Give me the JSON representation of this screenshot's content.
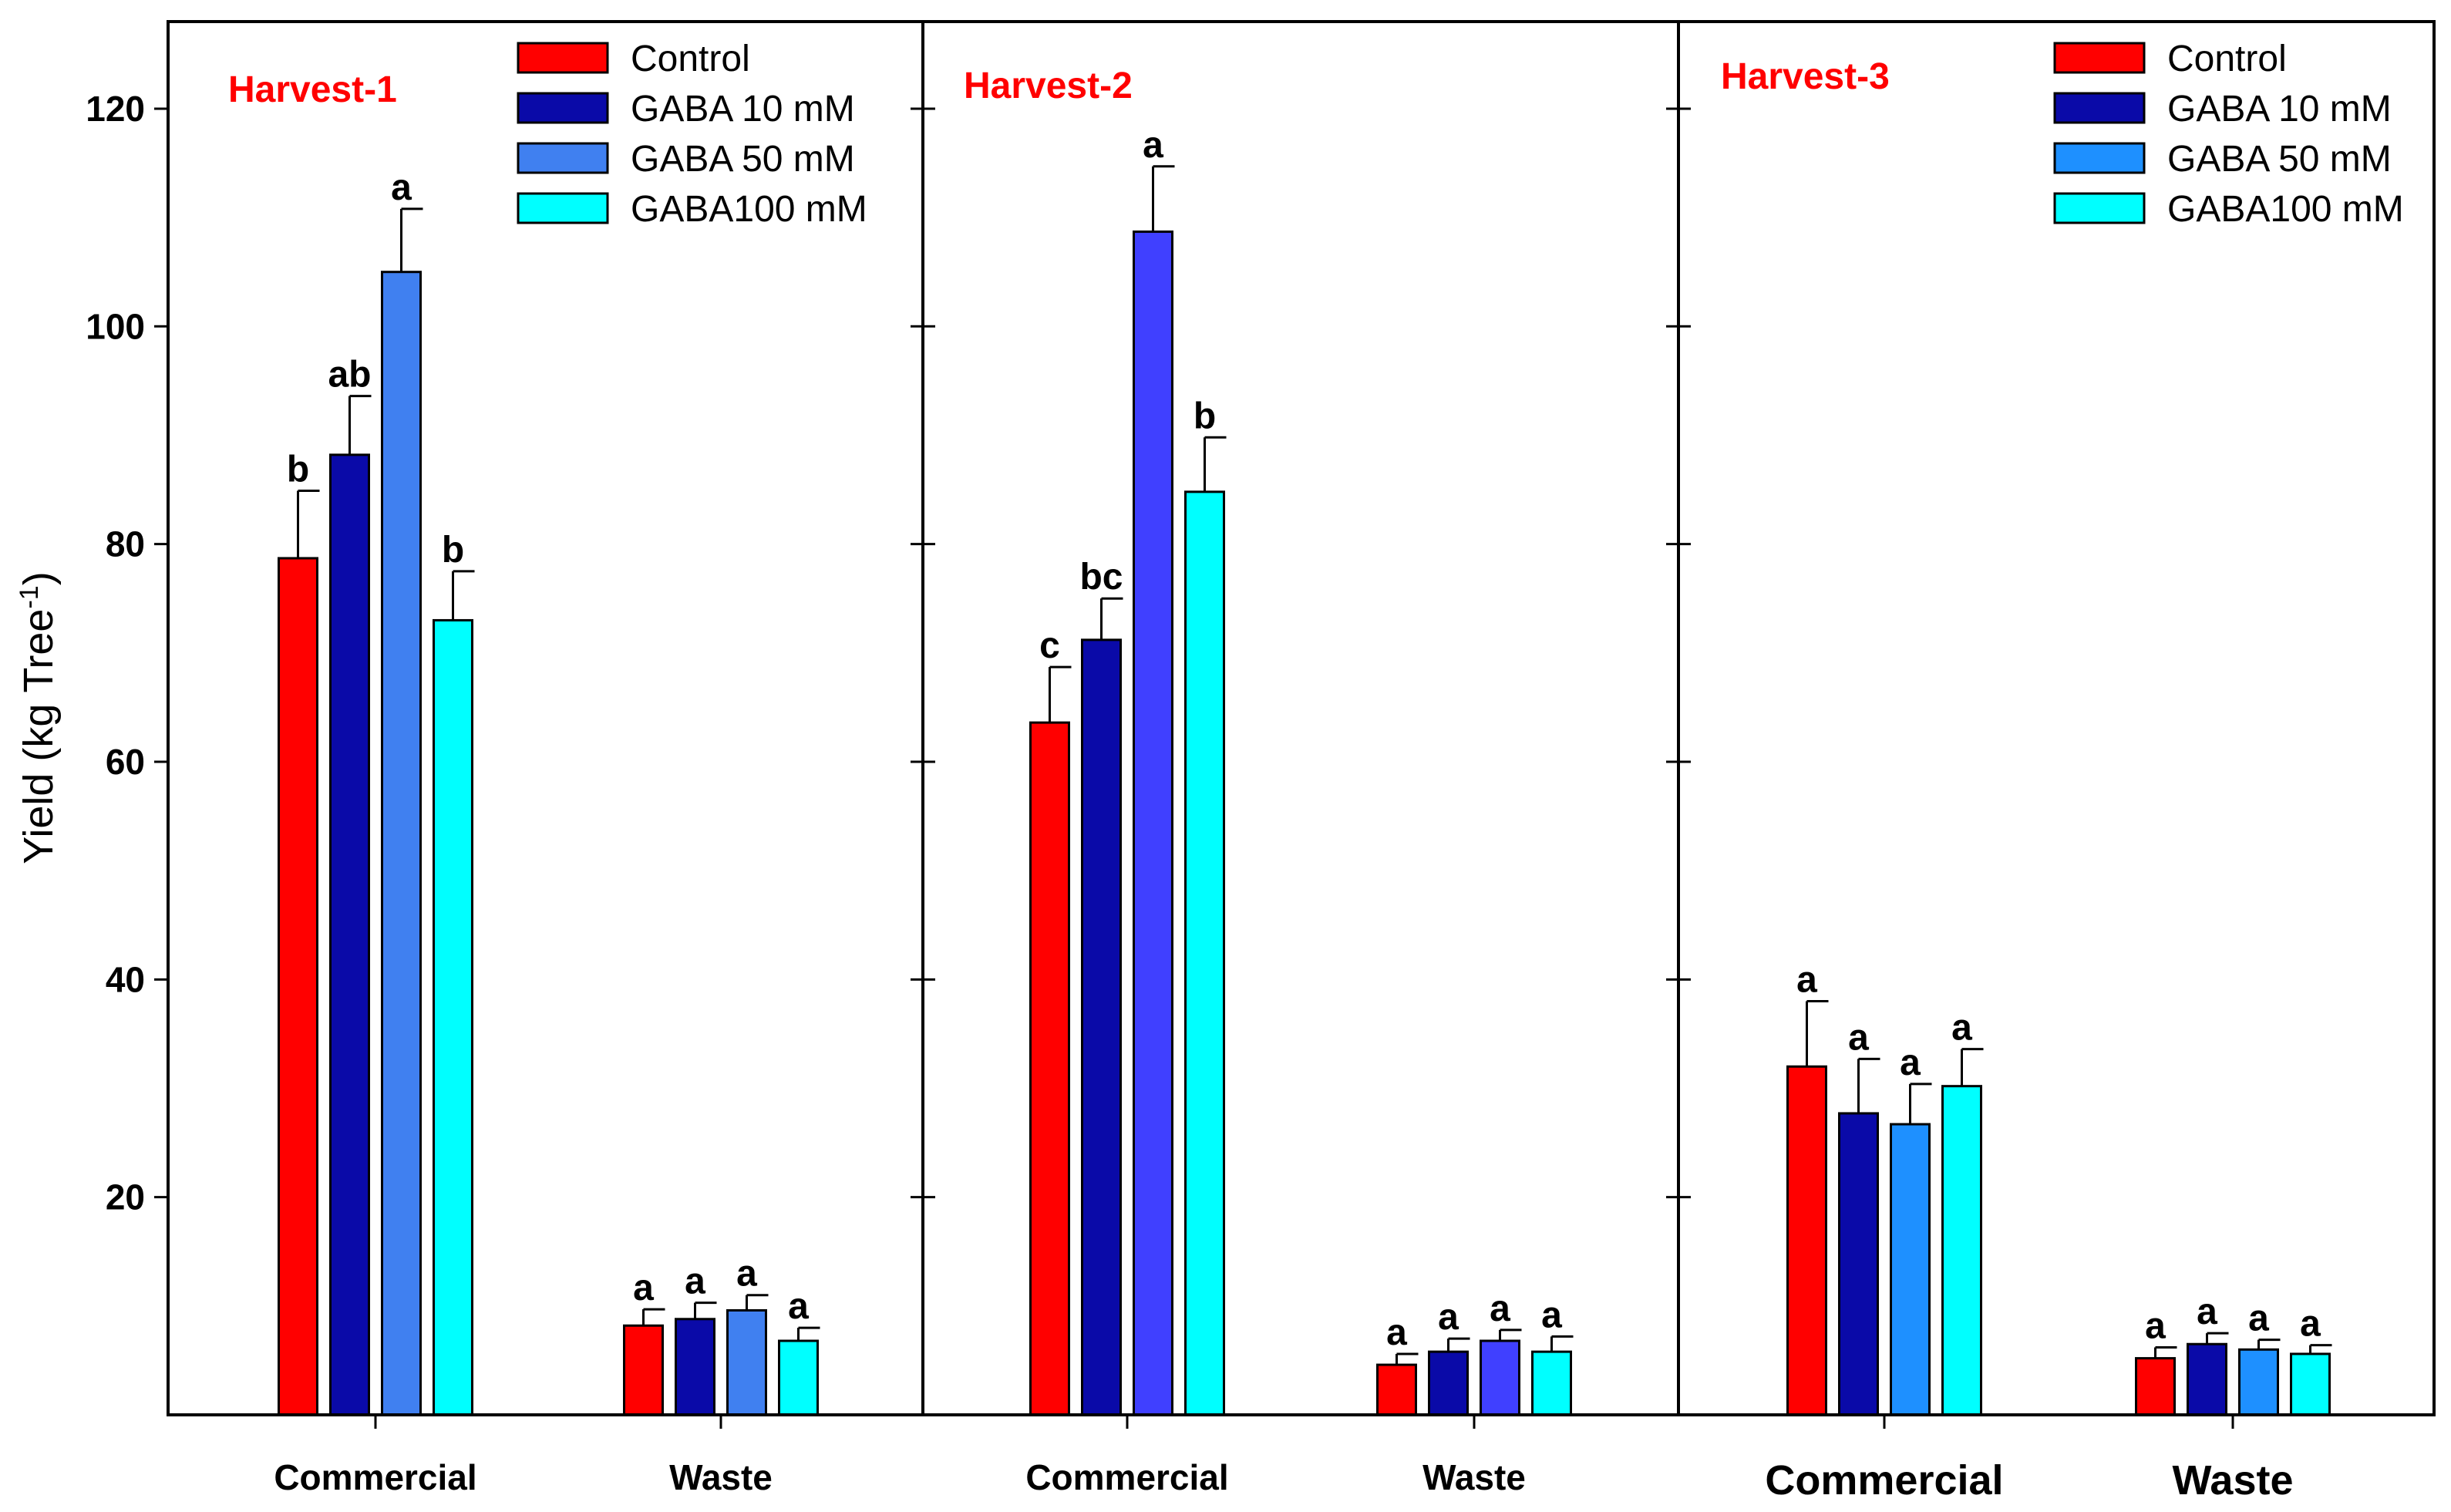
{
  "chart_data": {
    "type": "bar",
    "ylabel": "Yield (kg Tree-1)",
    "ylabel_main": "Yield (kg Tree",
    "ylabel_sup": "-1",
    "ylabel_close": ")",
    "ylim": [
      0,
      128
    ],
    "yticks": [
      20,
      40,
      60,
      80,
      100,
      120
    ],
    "categories": [
      "Commercial",
      "Waste"
    ],
    "panels": [
      {
        "title": "Harvest-1",
        "title_color": "#ff0000",
        "legend": [
          "Control",
          "GABA 10 mM",
          "GABA 50 mM",
          "GABA100 mM"
        ],
        "series": [
          {
            "name": "Control",
            "color": "#ff0000",
            "values": [
              78.7,
              8.2
            ],
            "errors": [
              6.2,
              1.5
            ],
            "letters": [
              "b",
              "a"
            ]
          },
          {
            "name": "GABA 10 mM",
            "color": "#0a0aa8",
            "values": [
              88.2,
              8.8
            ],
            "errors": [
              5.4,
              1.5
            ],
            "letters": [
              "ab",
              "a"
            ]
          },
          {
            "name": "GABA 50 mM",
            "color": "#4080f0",
            "values": [
              105.0,
              9.6
            ],
            "errors": [
              5.8,
              1.4
            ],
            "letters": [
              "a",
              "a"
            ]
          },
          {
            "name": "GABA100 mM",
            "color": "#00ffff",
            "values": [
              73.0,
              6.8
            ],
            "errors": [
              4.5,
              1.2
            ],
            "letters": [
              "b",
              "a"
            ]
          }
        ]
      },
      {
        "title": "Harvest-2",
        "title_color": "#ff0000",
        "legend": [],
        "series": [
          {
            "name": "Control",
            "color": "#ff0000",
            "values": [
              63.6,
              4.6
            ],
            "errors": [
              5.1,
              1.0
            ],
            "letters": [
              "c",
              "a"
            ]
          },
          {
            "name": "GABA 10 mM",
            "color": "#0a0aa8",
            "values": [
              71.2,
              5.8
            ],
            "errors": [
              3.8,
              1.2
            ],
            "letters": [
              "bc",
              "a"
            ]
          },
          {
            "name": "GABA 50 mM",
            "color": "#4040ff",
            "values": [
              108.7,
              6.8
            ],
            "errors": [
              6.0,
              1.0
            ],
            "letters": [
              "a",
              "a"
            ]
          },
          {
            "name": "GABA100 mM",
            "color": "#00ffff",
            "values": [
              84.8,
              5.8
            ],
            "errors": [
              5.0,
              1.4
            ],
            "letters": [
              "b",
              "a"
            ]
          }
        ]
      },
      {
        "title": "Harvest-3",
        "title_color": "#ff0000",
        "legend": [
          "Control",
          "GABA 10 mM",
          "GABA 50 mM",
          "GABA100 mM"
        ],
        "series": [
          {
            "name": "Control",
            "color": "#ff0000",
            "values": [
              32.0,
              5.2
            ],
            "errors": [
              6.0,
              1.0
            ],
            "letters": [
              "a",
              "a"
            ]
          },
          {
            "name": "GABA 10 mM",
            "color": "#0a0aa8",
            "values": [
              27.7,
              6.5
            ],
            "errors": [
              5.0,
              1.0
            ],
            "letters": [
              "a",
              "a"
            ]
          },
          {
            "name": "GABA 50 mM",
            "color": "#1e90ff",
            "values": [
              26.7,
              6.0
            ],
            "errors": [
              3.7,
              0.9
            ],
            "letters": [
              "a",
              "a"
            ]
          },
          {
            "name": "GABA100 mM",
            "color": "#00ffff",
            "values": [
              30.2,
              5.6
            ],
            "errors": [
              3.4,
              0.8
            ],
            "letters": [
              "a",
              "a"
            ]
          }
        ]
      }
    ]
  }
}
